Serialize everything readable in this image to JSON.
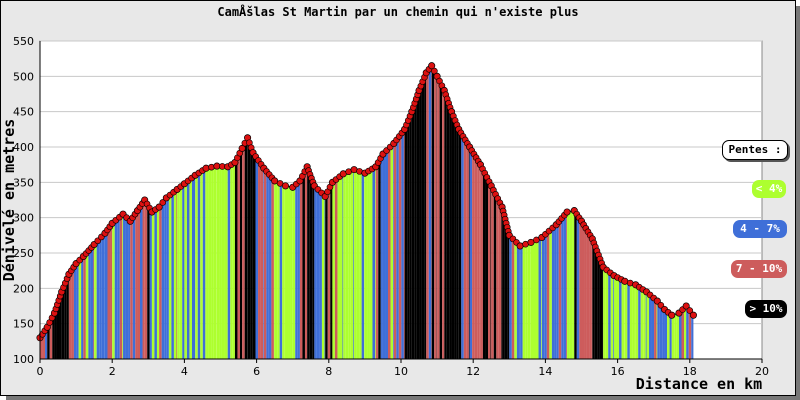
{
  "chart_data": {
    "type": "area",
    "title": "CamÅšlas St Martin par un chemin qui n'existe plus",
    "xlabel": "Distance en km",
    "ylabel": "Dénivelé en metres",
    "xlim": [
      0,
      20
    ],
    "ylim": [
      100,
      550
    ],
    "xticks": [
      "0",
      "2",
      "4",
      "6",
      "8",
      "10",
      "12",
      "14",
      "16",
      "18",
      "20"
    ],
    "yticks": [
      "100",
      "150",
      "200",
      "250",
      "300",
      "350",
      "400",
      "450",
      "500",
      "550"
    ],
    "grid": "horizontal",
    "legend": {
      "title": "Pentes :",
      "placement": "right",
      "items": [
        {
          "label": "< 4%",
          "color": "#adff2f"
        },
        {
          "label": "4 - 7%",
          "color": "#3f6fd8"
        },
        {
          "label": "7 - 10%",
          "color": "#cd5c5c"
        },
        {
          "label": "> 10%",
          "color": "#000000"
        }
      ]
    },
    "marker_color": "#dd1111",
    "series": [
      {
        "x": [
          0,
          0.2,
          0.4,
          0.6,
          0.8,
          1.0,
          1.2,
          1.5,
          1.8,
          2.0,
          2.3,
          2.5,
          2.7,
          2.9,
          3.1,
          3.3,
          3.5,
          3.8,
          4.0,
          4.3,
          4.6,
          4.9,
          5.2,
          5.4,
          5.6,
          5.75,
          5.9,
          6.2,
          6.5,
          6.8,
          7.0,
          7.2,
          7.4,
          7.6,
          7.9,
          8.1,
          8.4,
          8.7,
          9.0,
          9.3,
          9.5,
          9.8,
          10.1,
          10.3,
          10.5,
          10.7,
          10.85,
          11.0,
          11.2,
          11.4,
          11.6,
          11.9,
          12.2,
          12.5,
          12.8,
          13.0,
          13.3,
          13.6,
          13.9,
          14.3,
          14.6,
          14.8,
          15.0,
          15.3,
          15.6,
          15.9,
          16.2,
          16.5,
          16.8,
          17.1,
          17.3,
          17.5,
          17.7,
          17.9,
          18.1
        ],
        "y": [
          130,
          145,
          165,
          195,
          220,
          235,
          245,
          262,
          278,
          292,
          305,
          295,
          310,
          325,
          308,
          315,
          328,
          340,
          348,
          360,
          370,
          373,
          372,
          378,
          398,
          413,
          392,
          370,
          352,
          345,
          343,
          352,
          372,
          345,
          330,
          350,
          362,
          368,
          363,
          372,
          390,
          405,
          425,
          450,
          480,
          505,
          515,
          500,
          480,
          450,
          425,
          400,
          375,
          345,
          315,
          275,
          260,
          265,
          272,
          290,
          308,
          310,
          295,
          270,
          230,
          218,
          210,
          205,
          195,
          182,
          170,
          162,
          165,
          175,
          162
        ]
      }
    ]
  }
}
